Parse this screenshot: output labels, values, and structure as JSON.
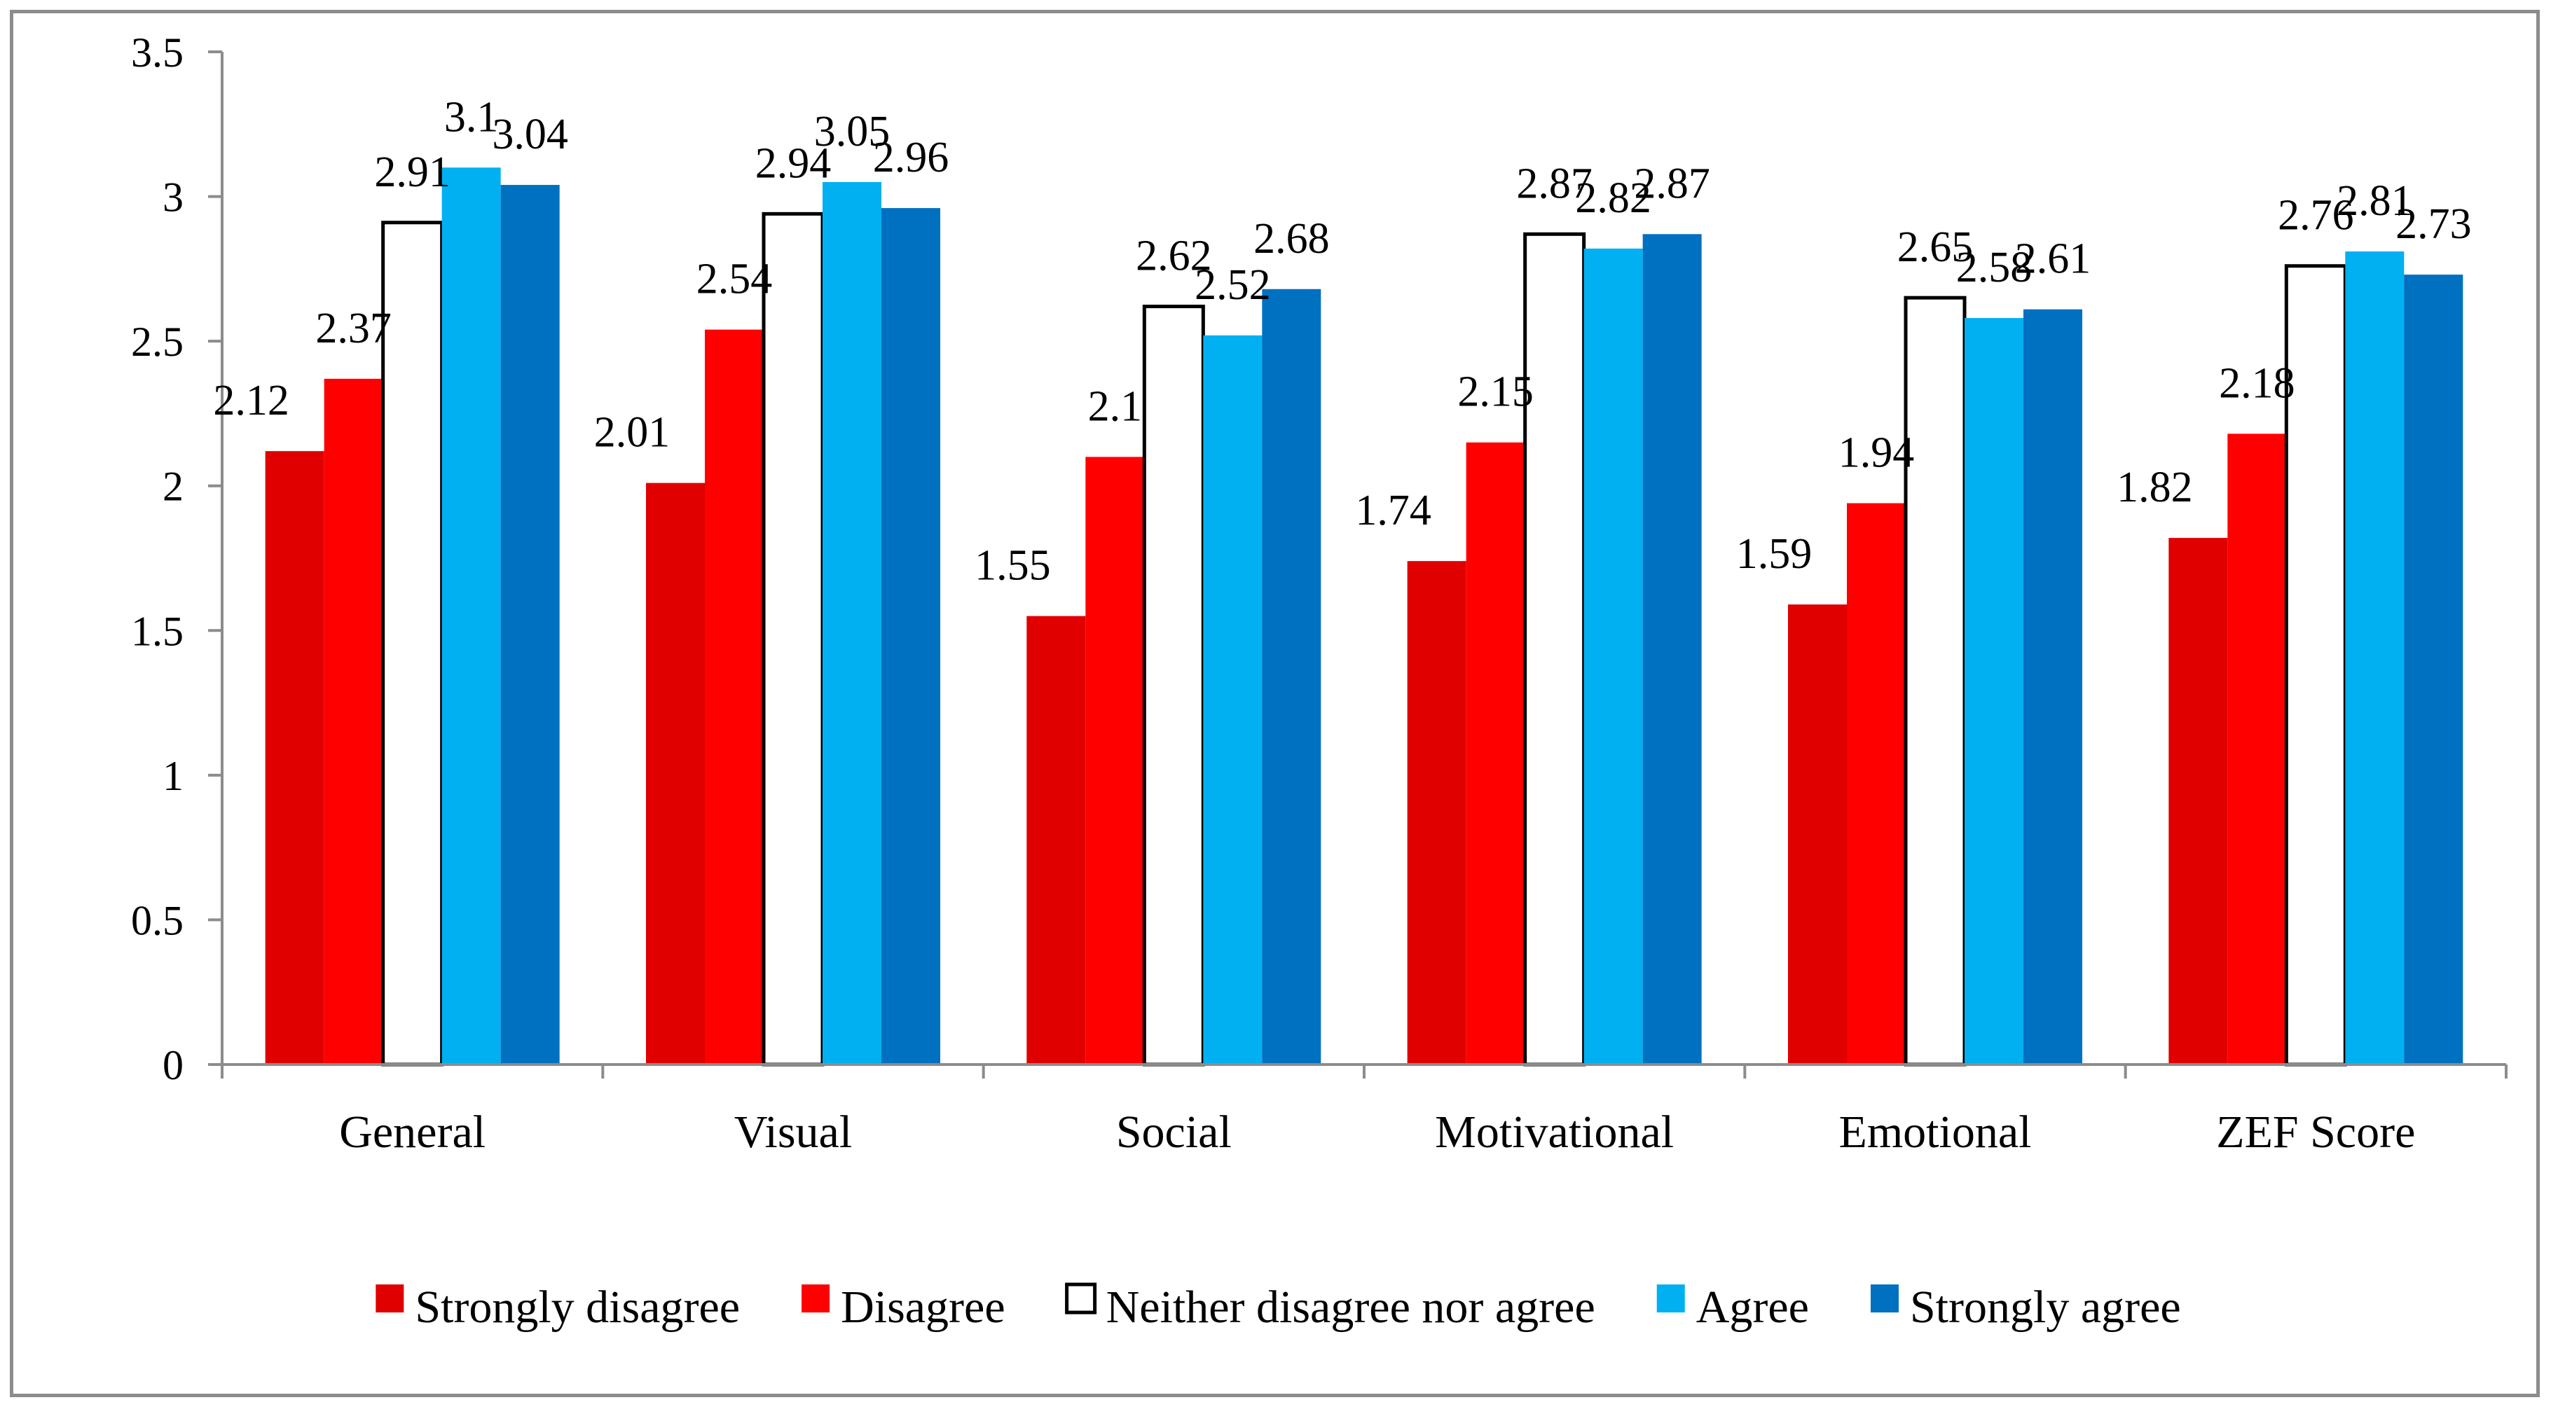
{
  "chart_data": {
    "type": "bar",
    "categories": [
      "General",
      "Visual",
      "Social",
      "Motivational",
      "Emotional",
      "ZEF Score"
    ],
    "series": [
      {
        "name": "Strongly disagree",
        "color": "#e00000",
        "values": [
          2.12,
          2.01,
          1.55,
          1.74,
          1.59,
          1.82
        ]
      },
      {
        "name": "Disagree",
        "color": "#ff0000",
        "values": [
          2.37,
          2.54,
          2.1,
          2.15,
          1.94,
          2.18
        ]
      },
      {
        "name": "Neither disagree nor agree",
        "color": "#ffffff",
        "values": [
          2.91,
          2.94,
          2.62,
          2.87,
          2.65,
          2.76
        ]
      },
      {
        "name": "Agree",
        "color": "#00b0f0",
        "values": [
          3.1,
          3.05,
          2.52,
          2.82,
          2.58,
          2.81
        ]
      },
      {
        "name": "Strongly agree",
        "color": "#0070c0",
        "values": [
          3.04,
          2.96,
          2.68,
          2.87,
          2.61,
          2.73
        ]
      }
    ],
    "yticks": [
      "0",
      "0.5",
      "1",
      "1.5",
      "2",
      "2.5",
      "3",
      "3.5"
    ],
    "ylim": [
      0,
      3.5
    ],
    "title": "",
    "xlabel": "",
    "ylabel": "",
    "legend_position": "bottom",
    "grid": false
  }
}
